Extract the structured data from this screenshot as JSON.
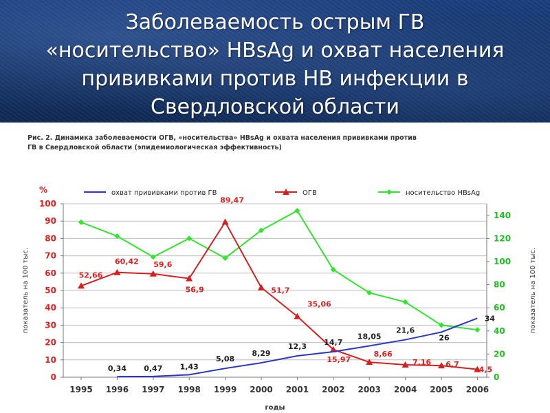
{
  "slide": {
    "title": "Заболеваемость острым ГВ\n«носительство» HBsAg и охват населения\nпрививками против НВ инфекции в\nСвердловской области"
  },
  "figure": {
    "caption": "Рис. 2. Динамика заболеваемости ОГВ, «носительства» HBsAg и охвата населения прививками против\nГВ в Свердловской области (эпидемиологическая эффективность)"
  },
  "colors": {
    "coverage": "#2b35c8",
    "acute": "#d81e1e",
    "carrier": "#2ee62e",
    "grid": "#bdbdbd",
    "left_axis_text": "#e02020",
    "right_axis_text": "#1fbf1f"
  },
  "chart_data": {
    "type": "line",
    "title": "",
    "xlabel": "годы",
    "ylabel_left": "показатель на 100 тыс.",
    "ylabel_left_unit": "%",
    "ylabel_right": "показатель на 100 тыс.",
    "x": [
      "1995",
      "1996",
      "1997",
      "1998",
      "1999",
      "2000",
      "2001",
      "2002",
      "2003",
      "2004",
      "2005",
      "2006"
    ],
    "ylim_left": [
      0,
      100
    ],
    "yticks_left": [
      "0",
      "10",
      "20",
      "30",
      "40",
      "50",
      "60",
      "70",
      "80",
      "90",
      "100"
    ],
    "ylim_right": [
      0,
      150
    ],
    "yticks_right": [
      "0",
      "20",
      "40",
      "60",
      "80",
      "100",
      "120",
      "140"
    ],
    "grid": "horizontal",
    "legend_position": "top",
    "series": [
      {
        "name": "охват прививками против ГВ",
        "axis": "left",
        "marker": "none",
        "values": [
          null,
          0.34,
          0.47,
          1.43,
          5.08,
          8.29,
          12.3,
          14.7,
          18.05,
          21.6,
          26,
          34
        ],
        "labels": [
          "",
          "0,34",
          "0,47",
          "1,43",
          "5,08",
          "8,29",
          "12,3",
          "14,7",
          "18,05",
          "21,6",
          "26",
          "34"
        ]
      },
      {
        "name": "ОГВ",
        "axis": "left",
        "marker": "triangle",
        "values": [
          52.66,
          60.42,
          59.6,
          56.9,
          89.47,
          51.7,
          35.06,
          15.97,
          8.66,
          7.16,
          6.7,
          4.5
        ],
        "labels": [
          "52,66",
          "60,42",
          "59,6",
          "56,9",
          "89,47",
          "51,7",
          "35,06",
          "15,97",
          "8,66",
          "7,16",
          "6,7",
          "4,5"
        ]
      },
      {
        "name": "носительство HBsAg",
        "axis": "right",
        "marker": "diamond",
        "values": [
          134,
          122,
          104,
          120,
          103,
          127,
          144,
          93,
          73,
          65,
          45,
          41
        ]
      }
    ]
  }
}
